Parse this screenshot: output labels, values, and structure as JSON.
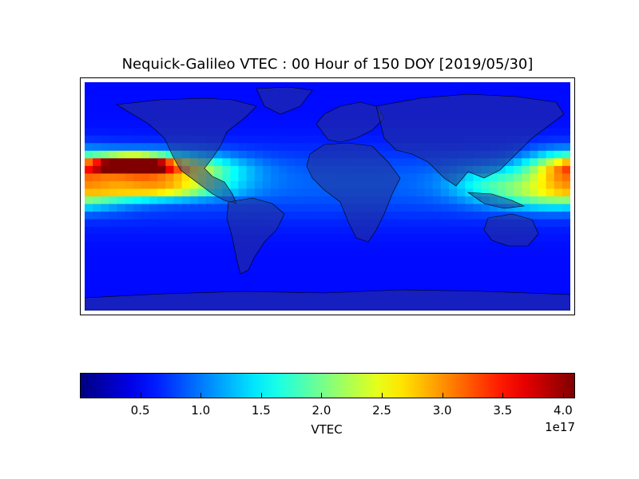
{
  "title": "Nequick-Galileo VTEC : 00 Hour of 150 DOY [2019/05/30]",
  "colorbar": {
    "label": "VTEC",
    "exponent_label": "1e17",
    "min": 0.0,
    "max": 4.1,
    "ticks": [
      "0.5",
      "1.0",
      "1.5",
      "2.0",
      "2.5",
      "3.0",
      "3.5",
      "4.0"
    ],
    "tick_values": [
      0.5,
      1.0,
      1.5,
      2.0,
      2.5,
      3.0,
      3.5,
      4.0
    ],
    "colormap": "jet"
  },
  "chart_data": {
    "type": "heatmap",
    "title": "Nequick-Galileo VTEC : 00 Hour of 150 DOY [2019/05/30]",
    "projection": "equirectangular",
    "lon_range": [
      -180,
      180
    ],
    "lat_range": [
      -90,
      90
    ],
    "value_label": "VTEC",
    "value_scale": "1e17",
    "vmin": 0.0,
    "vmax": 4.1,
    "colormap": "jet",
    "hotspots": [
      {
        "lon": -145,
        "lat": 25,
        "value": 4.0,
        "sigma_lon": 18,
        "sigma_lat": 5
      },
      {
        "lon": -120,
        "lat": 20,
        "value": 2.6,
        "sigma_lon": 35,
        "sigma_lat": 9
      },
      {
        "lon": -130,
        "lat": 5,
        "value": 2.0,
        "sigma_lon": 35,
        "sigma_lat": 5
      },
      {
        "lon": 175,
        "lat": 20,
        "value": 2.3,
        "sigma_lon": 20,
        "sigma_lat": 10
      },
      {
        "lon": 170,
        "lat": 0,
        "value": 1.6,
        "sigma_lon": 30,
        "sigma_lat": 8
      },
      {
        "lon": 125,
        "lat": 10,
        "value": 1.3,
        "sigma_lon": 25,
        "sigma_lat": 10
      }
    ],
    "background_value": 0.55
  }
}
